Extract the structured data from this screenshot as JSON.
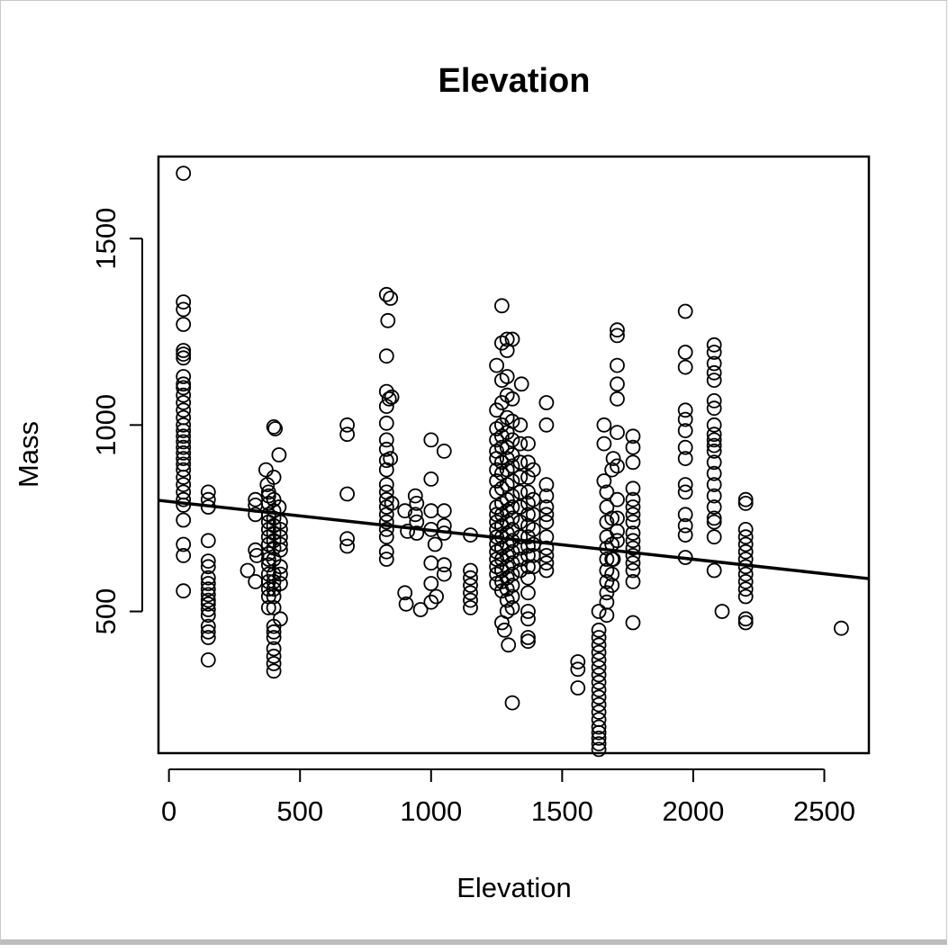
{
  "chart_data": {
    "type": "scatter",
    "title": "Elevation",
    "xlabel": "Elevation",
    "ylabel": "Mass",
    "xlim": [
      -40,
      2670
    ],
    "ylim": [
      120,
      1720
    ],
    "x_ticks": [
      0,
      500,
      1000,
      1500,
      2000,
      2500
    ],
    "y_ticks": [
      500,
      1000,
      1500
    ],
    "grid": false,
    "legend": "none",
    "regression_line": {
      "x": [
        -40,
        2670
      ],
      "y": [
        798,
        588
      ]
    },
    "point_style": {
      "shape": "open-circle",
      "color": "#000000"
    },
    "points": [
      [
        55,
        1675
      ],
      [
        55,
        1330
      ],
      [
        55,
        1310
      ],
      [
        55,
        1270
      ],
      [
        55,
        1200
      ],
      [
        55,
        1190
      ],
      [
        55,
        1180
      ],
      [
        55,
        1130
      ],
      [
        55,
        1110
      ],
      [
        55,
        1100
      ],
      [
        55,
        1080
      ],
      [
        55,
        1060
      ],
      [
        55,
        1040
      ],
      [
        55,
        1020
      ],
      [
        55,
        1000
      ],
      [
        55,
        985
      ],
      [
        55,
        970
      ],
      [
        55,
        955
      ],
      [
        55,
        940
      ],
      [
        55,
        925
      ],
      [
        55,
        910
      ],
      [
        55,
        895
      ],
      [
        55,
        880
      ],
      [
        55,
        860
      ],
      [
        55,
        840
      ],
      [
        55,
        820
      ],
      [
        55,
        800
      ],
      [
        55,
        785
      ],
      [
        55,
        745
      ],
      [
        55,
        680
      ],
      [
        55,
        650
      ],
      [
        55,
        555
      ],
      [
        150,
        820
      ],
      [
        150,
        800
      ],
      [
        150,
        780
      ],
      [
        150,
        690
      ],
      [
        150,
        635
      ],
      [
        150,
        620
      ],
      [
        150,
        590
      ],
      [
        150,
        575
      ],
      [
        150,
        560
      ],
      [
        150,
        545
      ],
      [
        150,
        530
      ],
      [
        150,
        520
      ],
      [
        150,
        505
      ],
      [
        150,
        490
      ],
      [
        150,
        460
      ],
      [
        150,
        445
      ],
      [
        150,
        430
      ],
      [
        150,
        370
      ],
      [
        300,
        610
      ],
      [
        330,
        800
      ],
      [
        330,
        785
      ],
      [
        330,
        760
      ],
      [
        330,
        665
      ],
      [
        335,
        650
      ],
      [
        330,
        580
      ],
      [
        370,
        880
      ],
      [
        375,
        840
      ],
      [
        380,
        820
      ],
      [
        380,
        810
      ],
      [
        380,
        790
      ],
      [
        380,
        760
      ],
      [
        380,
        740
      ],
      [
        380,
        720
      ],
      [
        380,
        700
      ],
      [
        380,
        680
      ],
      [
        380,
        655
      ],
      [
        380,
        640
      ],
      [
        380,
        625
      ],
      [
        380,
        600
      ],
      [
        380,
        580
      ],
      [
        380,
        560
      ],
      [
        380,
        540
      ],
      [
        380,
        510
      ],
      [
        400,
        995
      ],
      [
        405,
        990
      ],
      [
        400,
        860
      ],
      [
        400,
        800
      ],
      [
        400,
        770
      ],
      [
        400,
        750
      ],
      [
        400,
        730
      ],
      [
        400,
        710
      ],
      [
        400,
        690
      ],
      [
        400,
        670
      ],
      [
        400,
        640
      ],
      [
        400,
        600
      ],
      [
        400,
        580
      ],
      [
        400,
        560
      ],
      [
        400,
        540
      ],
      [
        400,
        510
      ],
      [
        400,
        460
      ],
      [
        400,
        445
      ],
      [
        400,
        430
      ],
      [
        400,
        400
      ],
      [
        400,
        380
      ],
      [
        400,
        360
      ],
      [
        400,
        340
      ],
      [
        420,
        920
      ],
      [
        420,
        780
      ],
      [
        425,
        740
      ],
      [
        425,
        720
      ],
      [
        425,
        700
      ],
      [
        425,
        680
      ],
      [
        425,
        665
      ],
      [
        425,
        620
      ],
      [
        425,
        600
      ],
      [
        425,
        575
      ],
      [
        425,
        480
      ],
      [
        680,
        1000
      ],
      [
        680,
        975
      ],
      [
        680,
        815
      ],
      [
        680,
        695
      ],
      [
        680,
        675
      ],
      [
        830,
        1350
      ],
      [
        835,
        1280
      ],
      [
        830,
        1185
      ],
      [
        830,
        1090
      ],
      [
        840,
        1070
      ],
      [
        830,
        1050
      ],
      [
        830,
        1005
      ],
      [
        830,
        960
      ],
      [
        830,
        935
      ],
      [
        830,
        905
      ],
      [
        830,
        880
      ],
      [
        830,
        840
      ],
      [
        830,
        820
      ],
      [
        830,
        800
      ],
      [
        830,
        780
      ],
      [
        830,
        760
      ],
      [
        830,
        740
      ],
      [
        830,
        720
      ],
      [
        830,
        700
      ],
      [
        830,
        660
      ],
      [
        830,
        640
      ],
      [
        845,
        1340
      ],
      [
        850,
        1075
      ],
      [
        845,
        910
      ],
      [
        850,
        790
      ],
      [
        900,
        770
      ],
      [
        900,
        550
      ],
      [
        905,
        520
      ],
      [
        910,
        715
      ],
      [
        940,
        810
      ],
      [
        945,
        790
      ],
      [
        940,
        760
      ],
      [
        945,
        740
      ],
      [
        945,
        710
      ],
      [
        960,
        505
      ],
      [
        1000,
        960
      ],
      [
        1000,
        855
      ],
      [
        1000,
        770
      ],
      [
        1000,
        720
      ],
      [
        1000,
        630
      ],
      [
        1000,
        575
      ],
      [
        1000,
        525
      ],
      [
        1015,
        680
      ],
      [
        1020,
        540
      ],
      [
        1050,
        930
      ],
      [
        1050,
        770
      ],
      [
        1050,
        730
      ],
      [
        1050,
        710
      ],
      [
        1050,
        625
      ],
      [
        1050,
        600
      ],
      [
        1150,
        705
      ],
      [
        1150,
        610
      ],
      [
        1150,
        590
      ],
      [
        1150,
        570
      ],
      [
        1150,
        550
      ],
      [
        1150,
        530
      ],
      [
        1150,
        510
      ],
      [
        1250,
        1160
      ],
      [
        1250,
        1040
      ],
      [
        1250,
        990
      ],
      [
        1250,
        960
      ],
      [
        1250,
        930
      ],
      [
        1250,
        910
      ],
      [
        1250,
        880
      ],
      [
        1250,
        850
      ],
      [
        1250,
        820
      ],
      [
        1250,
        780
      ],
      [
        1250,
        760
      ],
      [
        1250,
        740
      ],
      [
        1250,
        720
      ],
      [
        1250,
        700
      ],
      [
        1250,
        680
      ],
      [
        1250,
        660
      ],
      [
        1250,
        640
      ],
      [
        1250,
        620
      ],
      [
        1250,
        600
      ],
      [
        1250,
        575
      ],
      [
        1270,
        1320
      ],
      [
        1270,
        1220
      ],
      [
        1270,
        1120
      ],
      [
        1270,
        1060
      ],
      [
        1270,
        1000
      ],
      [
        1270,
        970
      ],
      [
        1270,
        940
      ],
      [
        1270,
        900
      ],
      [
        1270,
        870
      ],
      [
        1270,
        830
      ],
      [
        1270,
        790
      ],
      [
        1270,
        760
      ],
      [
        1270,
        730
      ],
      [
        1270,
        700
      ],
      [
        1270,
        670
      ],
      [
        1270,
        640
      ],
      [
        1270,
        610
      ],
      [
        1270,
        580
      ],
      [
        1270,
        555
      ],
      [
        1270,
        470
      ],
      [
        1280,
        450
      ],
      [
        1290,
        1230
      ],
      [
        1290,
        1200
      ],
      [
        1290,
        1130
      ],
      [
        1290,
        1080
      ],
      [
        1290,
        1020
      ],
      [
        1290,
        980
      ],
      [
        1290,
        940
      ],
      [
        1290,
        910
      ],
      [
        1290,
        880
      ],
      [
        1290,
        840
      ],
      [
        1290,
        800
      ],
      [
        1290,
        770
      ],
      [
        1290,
        740
      ],
      [
        1290,
        710
      ],
      [
        1290,
        680
      ],
      [
        1290,
        650
      ],
      [
        1290,
        620
      ],
      [
        1290,
        590
      ],
      [
        1290,
        560
      ],
      [
        1290,
        530
      ],
      [
        1290,
        500
      ],
      [
        1295,
        410
      ],
      [
        1310,
        1230
      ],
      [
        1310,
        1070
      ],
      [
        1310,
        1010
      ],
      [
        1310,
        960
      ],
      [
        1310,
        920
      ],
      [
        1310,
        890
      ],
      [
        1310,
        850
      ],
      [
        1310,
        810
      ],
      [
        1310,
        780
      ],
      [
        1310,
        750
      ],
      [
        1310,
        720
      ],
      [
        1310,
        690
      ],
      [
        1310,
        660
      ],
      [
        1310,
        630
      ],
      [
        1310,
        600
      ],
      [
        1310,
        570
      ],
      [
        1310,
        540
      ],
      [
        1310,
        510
      ],
      [
        1310,
        255
      ],
      [
        1340,
        1000
      ],
      [
        1340,
        950
      ],
      [
        1340,
        900
      ],
      [
        1340,
        860
      ],
      [
        1340,
        820
      ],
      [
        1340,
        780
      ],
      [
        1340,
        740
      ],
      [
        1340,
        700
      ],
      [
        1340,
        670
      ],
      [
        1340,
        640
      ],
      [
        1340,
        610
      ],
      [
        1345,
        1110
      ],
      [
        1370,
        950
      ],
      [
        1370,
        900
      ],
      [
        1370,
        860
      ],
      [
        1370,
        820
      ],
      [
        1370,
        790
      ],
      [
        1370,
        760
      ],
      [
        1370,
        730
      ],
      [
        1370,
        700
      ],
      [
        1370,
        675
      ],
      [
        1370,
        650
      ],
      [
        1370,
        620
      ],
      [
        1370,
        590
      ],
      [
        1370,
        550
      ],
      [
        1370,
        500
      ],
      [
        1370,
        480
      ],
      [
        1370,
        430
      ],
      [
        1370,
        420
      ],
      [
        1390,
        880
      ],
      [
        1390,
        800
      ],
      [
        1390,
        760
      ],
      [
        1390,
        720
      ],
      [
        1390,
        680
      ],
      [
        1390,
        650
      ],
      [
        1390,
        620
      ],
      [
        1440,
        1060
      ],
      [
        1440,
        1000
      ],
      [
        1440,
        840
      ],
      [
        1440,
        810
      ],
      [
        1440,
        780
      ],
      [
        1440,
        760
      ],
      [
        1440,
        740
      ],
      [
        1440,
        700
      ],
      [
        1440,
        670
      ],
      [
        1440,
        650
      ],
      [
        1440,
        630
      ],
      [
        1440,
        610
      ],
      [
        1560,
        365
      ],
      [
        1560,
        345
      ],
      [
        1560,
        295
      ],
      [
        1640,
        500
      ],
      [
        1640,
        450
      ],
      [
        1640,
        430
      ],
      [
        1640,
        410
      ],
      [
        1640,
        390
      ],
      [
        1640,
        370
      ],
      [
        1640,
        350
      ],
      [
        1640,
        330
      ],
      [
        1640,
        310
      ],
      [
        1640,
        290
      ],
      [
        1640,
        270
      ],
      [
        1640,
        250
      ],
      [
        1640,
        230
      ],
      [
        1640,
        210
      ],
      [
        1640,
        190
      ],
      [
        1640,
        175
      ],
      [
        1640,
        160
      ],
      [
        1640,
        145
      ],
      [
        1640,
        130
      ],
      [
        1660,
        1000
      ],
      [
        1660,
        950
      ],
      [
        1660,
        850
      ],
      [
        1670,
        820
      ],
      [
        1670,
        780
      ],
      [
        1670,
        740
      ],
      [
        1670,
        700
      ],
      [
        1670,
        670
      ],
      [
        1670,
        640
      ],
      [
        1670,
        610
      ],
      [
        1670,
        580
      ],
      [
        1670,
        550
      ],
      [
        1670,
        525
      ],
      [
        1670,
        490
      ],
      [
        1690,
        880
      ],
      [
        1695,
        910
      ],
      [
        1690,
        750
      ],
      [
        1690,
        680
      ],
      [
        1690,
        640
      ],
      [
        1690,
        600
      ],
      [
        1690,
        570
      ],
      [
        1695,
        640
      ],
      [
        1710,
        1255
      ],
      [
        1710,
        1240
      ],
      [
        1710,
        1160
      ],
      [
        1710,
        1110
      ],
      [
        1710,
        1070
      ],
      [
        1710,
        980
      ],
      [
        1710,
        890
      ],
      [
        1710,
        800
      ],
      [
        1710,
        750
      ],
      [
        1710,
        715
      ],
      [
        1710,
        690
      ],
      [
        1770,
        970
      ],
      [
        1770,
        940
      ],
      [
        1770,
        900
      ],
      [
        1770,
        830
      ],
      [
        1770,
        800
      ],
      [
        1770,
        780
      ],
      [
        1770,
        760
      ],
      [
        1770,
        740
      ],
      [
        1770,
        710
      ],
      [
        1770,
        690
      ],
      [
        1770,
        670
      ],
      [
        1770,
        650
      ],
      [
        1770,
        630
      ],
      [
        1770,
        610
      ],
      [
        1770,
        580
      ],
      [
        1770,
        470
      ],
      [
        1970,
        1305
      ],
      [
        1970,
        1195
      ],
      [
        1970,
        1155
      ],
      [
        1970,
        1040
      ],
      [
        1970,
        1015
      ],
      [
        1970,
        985
      ],
      [
        1970,
        940
      ],
      [
        1970,
        910
      ],
      [
        1970,
        840
      ],
      [
        1970,
        820
      ],
      [
        1970,
        760
      ],
      [
        1970,
        730
      ],
      [
        1970,
        705
      ],
      [
        1970,
        645
      ],
      [
        2080,
        1215
      ],
      [
        2080,
        1195
      ],
      [
        2080,
        1165
      ],
      [
        2080,
        1140
      ],
      [
        2080,
        1120
      ],
      [
        2080,
        1065
      ],
      [
        2080,
        1045
      ],
      [
        2080,
        1000
      ],
      [
        2080,
        975
      ],
      [
        2080,
        960
      ],
      [
        2080,
        945
      ],
      [
        2080,
        930
      ],
      [
        2080,
        900
      ],
      [
        2080,
        870
      ],
      [
        2080,
        840
      ],
      [
        2080,
        810
      ],
      [
        2080,
        780
      ],
      [
        2080,
        750
      ],
      [
        2080,
        740
      ],
      [
        2080,
        700
      ],
      [
        2080,
        610
      ],
      [
        2110,
        500
      ],
      [
        2200,
        800
      ],
      [
        2200,
        790
      ],
      [
        2200,
        720
      ],
      [
        2200,
        700
      ],
      [
        2200,
        680
      ],
      [
        2200,
        660
      ],
      [
        2200,
        640
      ],
      [
        2200,
        620
      ],
      [
        2200,
        600
      ],
      [
        2200,
        580
      ],
      [
        2200,
        560
      ],
      [
        2200,
        540
      ],
      [
        2200,
        480
      ],
      [
        2200,
        470
      ],
      [
        2565,
        455
      ]
    ]
  }
}
